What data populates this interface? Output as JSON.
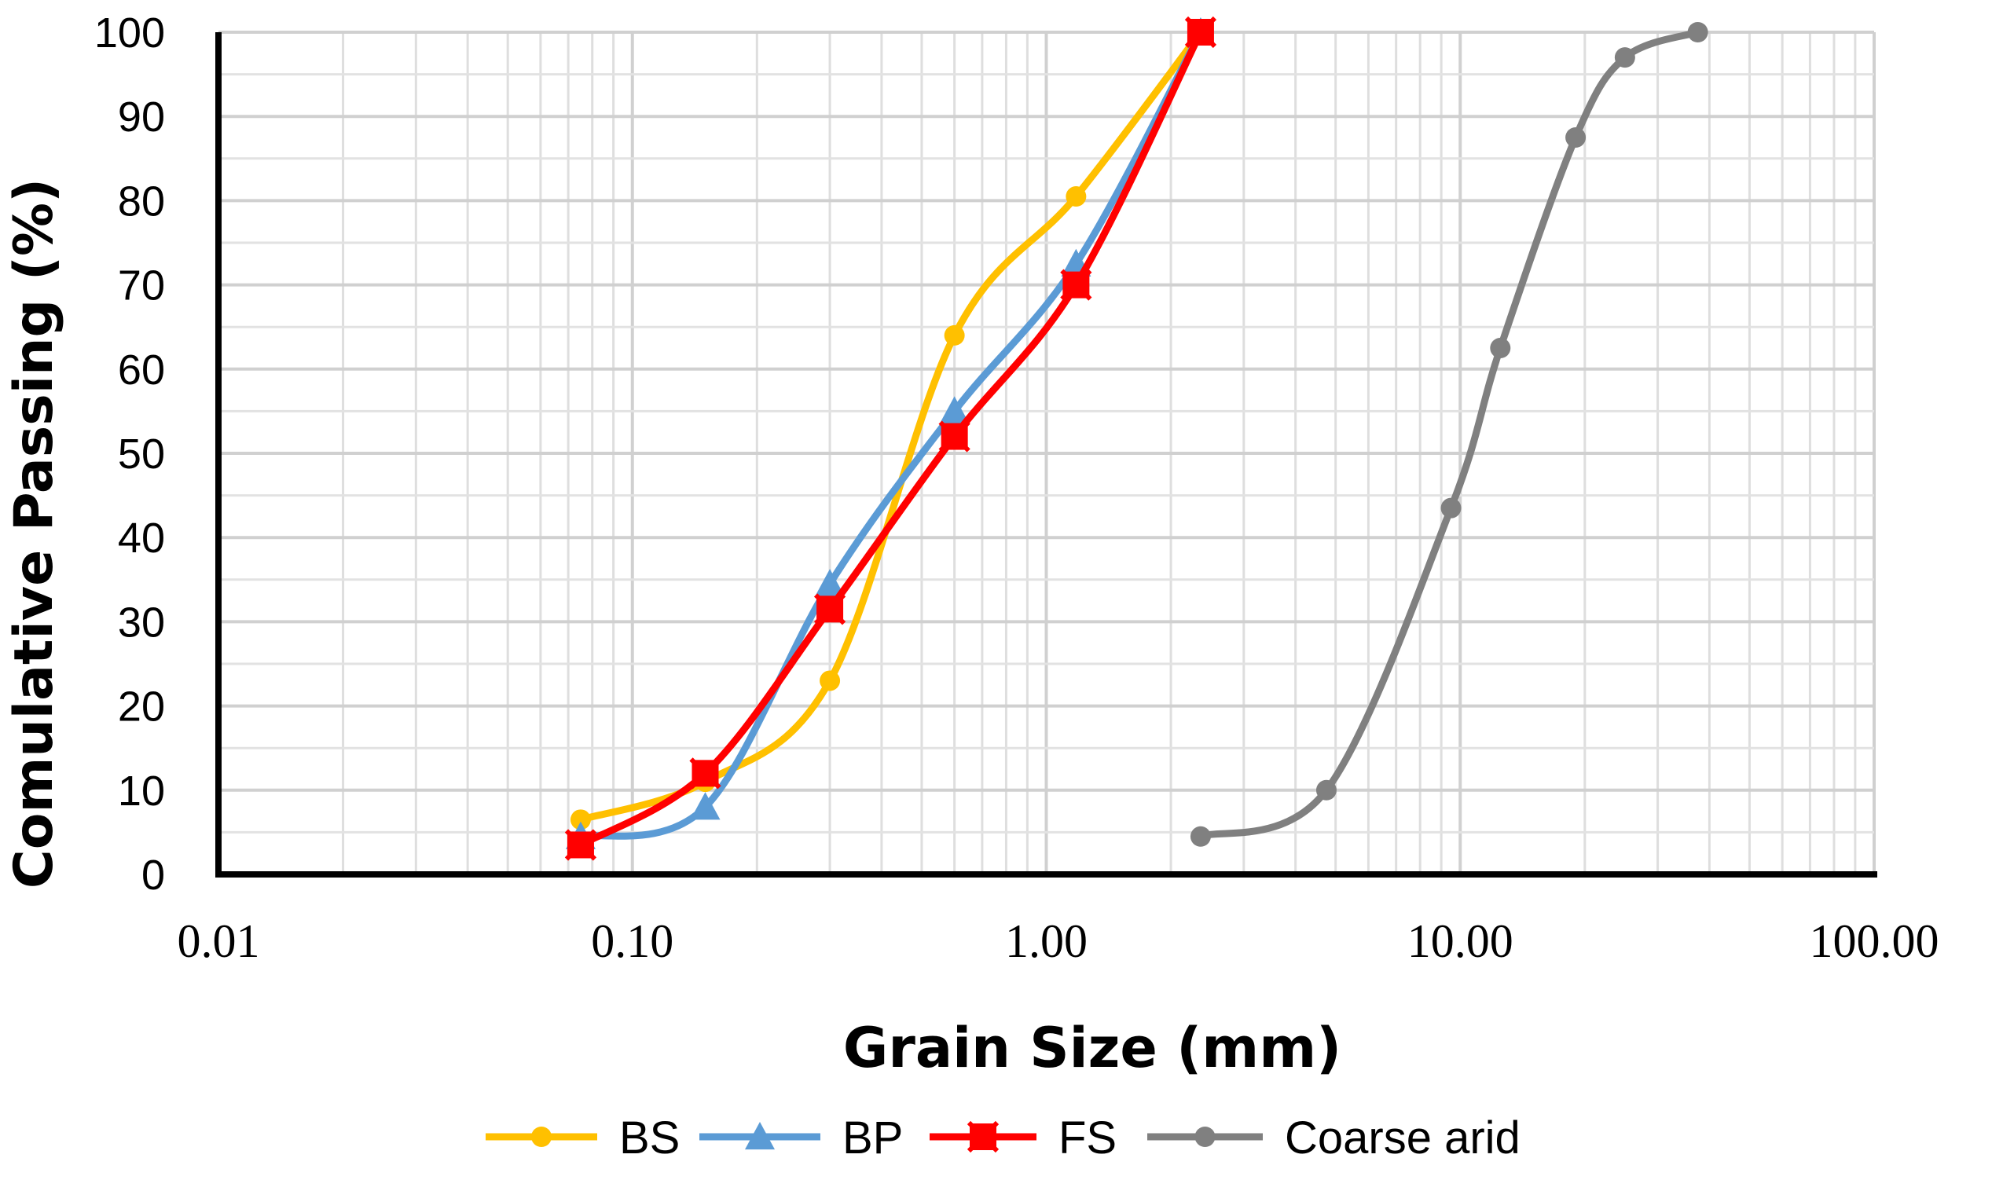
{
  "chart_data": {
    "type": "line",
    "xscale": "log",
    "title": "",
    "xlabel": "Grain Size (mm)",
    "ylabel": "Comulative Passing (%)",
    "xlim": [
      0.01,
      100
    ],
    "ylim": [
      0,
      100
    ],
    "x_tick_labels": [
      "0.01",
      "0.10",
      "1.00",
      "10.00",
      "100.00"
    ],
    "y_tick_labels": [
      "0",
      "10",
      "20",
      "30",
      "40",
      "50",
      "60",
      "70",
      "80",
      "90",
      "100"
    ],
    "grid": true,
    "legend_position": "bottom",
    "series": [
      {
        "name": "BS",
        "color": "#FFC000",
        "marker": "circle",
        "x": [
          0.075,
          0.15,
          0.3,
          0.6,
          1.18,
          2.36
        ],
        "y": [
          6.5,
          11,
          23,
          64,
          80.5,
          100
        ]
      },
      {
        "name": "BP",
        "color": "#5B9BD5",
        "marker": "triangle",
        "x": [
          0.075,
          0.15,
          0.3,
          0.6,
          1.18,
          2.36
        ],
        "y": [
          4.5,
          8,
          34.5,
          55,
          72.5,
          100
        ]
      },
      {
        "name": "FS",
        "color": "#FF0000",
        "marker": "square-x",
        "x": [
          0.075,
          0.15,
          0.3,
          0.6,
          1.18,
          2.36
        ],
        "y": [
          3.5,
          12,
          31.5,
          52,
          70,
          100
        ]
      },
      {
        "name": "Coarse arid",
        "color": "#808080",
        "marker": "circle",
        "x": [
          2.36,
          4.75,
          9.5,
          12.5,
          19,
          25,
          37.5
        ],
        "y": [
          4.5,
          10,
          43.5,
          62.5,
          87.5,
          97,
          100
        ]
      }
    ]
  }
}
